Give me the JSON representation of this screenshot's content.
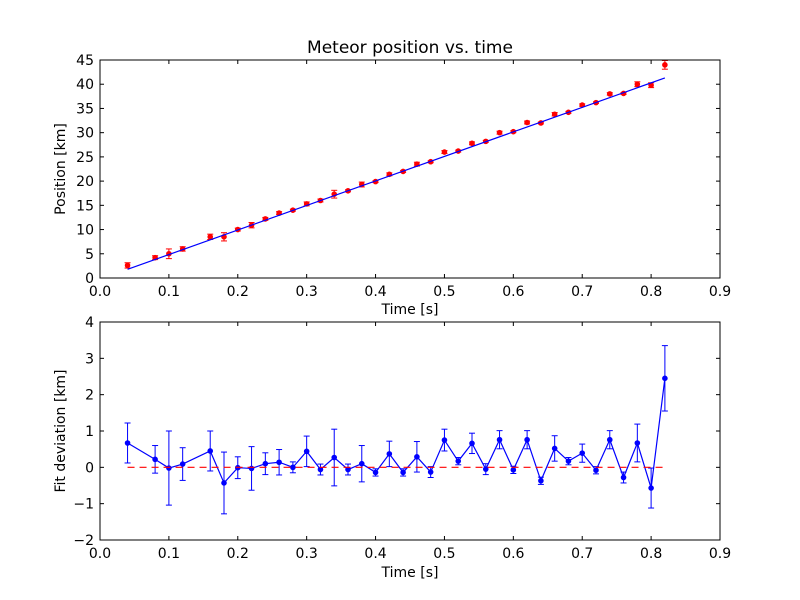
{
  "colors": {
    "fit_line": "#0000ff",
    "measurement": "#ff0000",
    "deviation": "#0000ff",
    "zero_line": "#ff0000",
    "axes": "#000000"
  },
  "chart_data": [
    {
      "type": "scatter",
      "title": "Meteor position vs. time",
      "xlabel": "Time [s]",
      "ylabel": "Position [km]",
      "xlim": [
        0.0,
        0.9
      ],
      "ylim": [
        0,
        45
      ],
      "xticks": [
        "0.0",
        "0.1",
        "0.2",
        "0.3",
        "0.4",
        "0.5",
        "0.6",
        "0.7",
        "0.8",
        "0.9"
      ],
      "yticks": [
        "0",
        "5",
        "10",
        "15",
        "20",
        "25",
        "30",
        "35",
        "40",
        "45"
      ],
      "grid": false,
      "series": [
        {
          "kind": "errorbar-points",
          "x": [
            0.04,
            0.08,
            0.1,
            0.12,
            0.16,
            0.18,
            0.2,
            0.22,
            0.24,
            0.26,
            0.28,
            0.3,
            0.32,
            0.34,
            0.36,
            0.38,
            0.4,
            0.42,
            0.44,
            0.46,
            0.48,
            0.5,
            0.52,
            0.54,
            0.56,
            0.58,
            0.6,
            0.62,
            0.64,
            0.66,
            0.68,
            0.7,
            0.72,
            0.74,
            0.76,
            0.78,
            0.8,
            0.82
          ],
          "y": [
            2.6,
            4.2,
            5.0,
            6.0,
            8.5,
            8.5,
            10.0,
            10.9,
            12.2,
            13.4,
            14.0,
            15.3,
            16.0,
            17.3,
            18.0,
            19.3,
            19.9,
            21.4,
            22.0,
            23.5,
            24.0,
            26.0,
            26.2,
            27.8,
            28.2,
            30.0,
            30.2,
            32.1,
            32.0,
            33.8,
            34.2,
            35.7,
            36.2,
            38.0,
            38.1,
            40.0,
            39.8,
            44.0
          ],
          "yerr": [
            0.55,
            0.4,
            1.0,
            0.45,
            0.55,
            0.85,
            0.3,
            0.55,
            0.3,
            0.3,
            0.2,
            0.4,
            0.3,
            0.8,
            0.2,
            0.5,
            0.2,
            0.3,
            0.2,
            0.4,
            0.2,
            0.3,
            0.2,
            0.3,
            0.2,
            0.3,
            0.2,
            0.3,
            0.2,
            0.35,
            0.2,
            0.25,
            0.15,
            0.25,
            0.2,
            0.5,
            0.5,
            0.9
          ]
        },
        {
          "kind": "line",
          "x": [
            0.04,
            0.82
          ],
          "y": [
            1.8,
            41.3
          ]
        }
      ]
    },
    {
      "type": "line",
      "title": "",
      "xlabel": "Time [s]",
      "ylabel": "Fit deviation [km]",
      "xlim": [
        0.0,
        0.9
      ],
      "ylim": [
        -2,
        4
      ],
      "xticks": [
        "0.0",
        "0.1",
        "0.2",
        "0.3",
        "0.4",
        "0.5",
        "0.6",
        "0.7",
        "0.8",
        "0.9"
      ],
      "yticks": [
        "−2",
        "−1",
        "0",
        "1",
        "2",
        "3",
        "4"
      ],
      "grid": false,
      "series": [
        {
          "kind": "errorbar-line",
          "x": [
            0.04,
            0.08,
            0.1,
            0.12,
            0.16,
            0.18,
            0.2,
            0.22,
            0.24,
            0.26,
            0.28,
            0.3,
            0.32,
            0.34,
            0.36,
            0.38,
            0.4,
            0.42,
            0.44,
            0.46,
            0.48,
            0.5,
            0.52,
            0.54,
            0.56,
            0.58,
            0.6,
            0.62,
            0.64,
            0.66,
            0.68,
            0.7,
            0.72,
            0.74,
            0.76,
            0.78,
            0.8,
            0.82
          ],
          "y": [
            0.67,
            0.22,
            -0.02,
            0.09,
            0.45,
            -0.43,
            -0.01,
            -0.03,
            0.1,
            0.14,
            0.0,
            0.44,
            -0.06,
            0.27,
            -0.06,
            0.1,
            -0.14,
            0.37,
            -0.14,
            0.29,
            -0.13,
            0.75,
            0.17,
            0.66,
            -0.05,
            0.76,
            -0.07,
            0.76,
            -0.37,
            0.52,
            0.17,
            0.39,
            -0.08,
            0.76,
            -0.28,
            0.67,
            -0.57,
            2.45
          ],
          "yerr": [
            0.55,
            0.38,
            1.02,
            0.45,
            0.55,
            0.85,
            0.3,
            0.6,
            0.3,
            0.35,
            0.15,
            0.42,
            0.15,
            0.78,
            0.15,
            0.5,
            0.1,
            0.35,
            0.1,
            0.42,
            0.15,
            0.3,
            0.1,
            0.28,
            0.15,
            0.25,
            0.1,
            0.25,
            0.1,
            0.35,
            0.1,
            0.25,
            0.1,
            0.25,
            0.15,
            0.52,
            0.55,
            0.9
          ]
        },
        {
          "kind": "dashed-line",
          "x": [
            0.04,
            0.82
          ],
          "y": [
            0,
            0
          ]
        }
      ]
    }
  ]
}
